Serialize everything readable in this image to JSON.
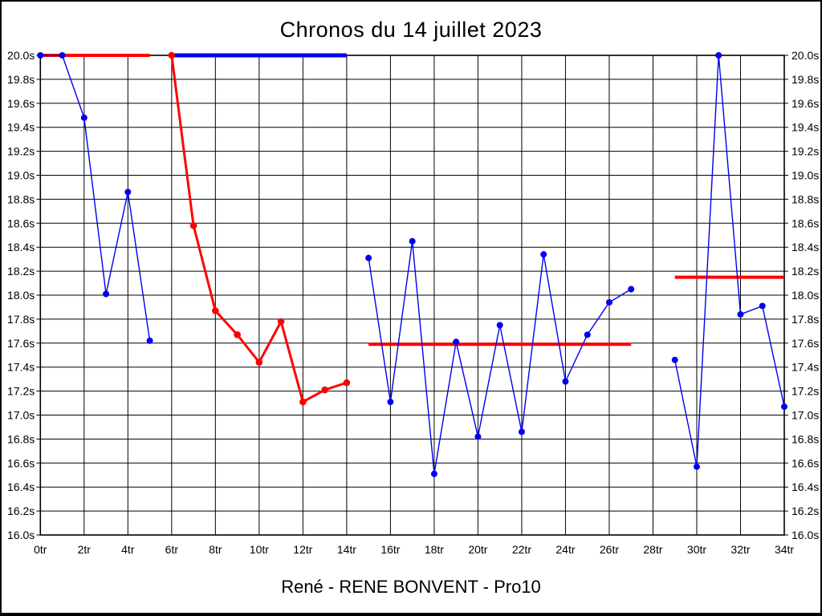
{
  "chart_data": {
    "type": "line",
    "title": "Chronos du 14 juillet 2023",
    "caption": "René - RENE BONVENT - Pro10",
    "x_unit": "tr",
    "y_unit": "s",
    "xlim": [
      0,
      34
    ],
    "ylim": [
      16.0,
      20.0
    ],
    "x_tick_step": 2,
    "y_tick_step": 0.2,
    "grid": true,
    "x_tick_labels": [
      "0tr",
      "2tr",
      "4tr",
      "6tr",
      "8tr",
      "10tr",
      "12tr",
      "14tr",
      "16tr",
      "18tr",
      "20tr",
      "22tr",
      "24tr",
      "26tr",
      "28tr",
      "30tr",
      "32tr",
      "34tr"
    ],
    "y_tick_labels": [
      "20.0s",
      "19.8s",
      "19.6s",
      "19.4s",
      "19.2s",
      "19.0s",
      "18.8s",
      "18.6s",
      "18.4s",
      "18.2s",
      "18.0s",
      "17.8s",
      "17.6s",
      "17.4s",
      "17.2s",
      "17.0s",
      "16.8s",
      "16.6s",
      "16.4s",
      "16.2s",
      "16.0s"
    ],
    "colors": {
      "blue": "#0000ee",
      "red": "#ff0000",
      "grid": "#000000"
    },
    "series": [
      {
        "name": "serie-bleue-1",
        "color": "#0000ee",
        "line_width": 1.4,
        "marker_radius": 4,
        "points": [
          [
            0,
            20.0
          ],
          [
            1,
            20.0
          ],
          [
            2,
            19.48
          ],
          [
            3,
            18.01
          ],
          [
            4,
            18.86
          ],
          [
            5,
            17.62
          ]
        ]
      },
      {
        "name": "serie-rouge",
        "color": "#ff0000",
        "line_width": 3,
        "marker_radius": 4.3,
        "points": [
          [
            6,
            20.0
          ],
          [
            7,
            18.58
          ],
          [
            8,
            17.87
          ],
          [
            9,
            17.67
          ],
          [
            10,
            17.44
          ],
          [
            11,
            17.78
          ],
          [
            12,
            17.11
          ],
          [
            13,
            17.21
          ],
          [
            14,
            17.27
          ]
        ]
      },
      {
        "name": "serie-bleue-2",
        "color": "#0000ee",
        "line_width": 1.4,
        "marker_radius": 4,
        "points": [
          [
            15,
            18.31
          ],
          [
            16,
            17.11
          ],
          [
            17,
            18.45
          ],
          [
            18,
            16.51
          ],
          [
            19,
            17.61
          ],
          [
            20,
            16.82
          ],
          [
            21,
            17.75
          ],
          [
            22,
            16.86
          ],
          [
            23,
            18.34
          ],
          [
            24,
            17.28
          ],
          [
            25,
            17.67
          ],
          [
            26,
            17.94
          ],
          [
            27,
            18.05
          ]
        ]
      },
      {
        "name": "serie-bleue-3",
        "color": "#0000ee",
        "line_width": 1.4,
        "marker_radius": 4,
        "points": [
          [
            29,
            17.46
          ],
          [
            30,
            16.57
          ],
          [
            31,
            20.0
          ],
          [
            32,
            17.84
          ],
          [
            33,
            17.91
          ],
          [
            34,
            17.07
          ]
        ]
      }
    ],
    "reference_lines": [
      {
        "name": "reference-groupe-1",
        "color": "#ff0000",
        "value": 20.0,
        "x1": 0,
        "x2": 5,
        "width": 4
      },
      {
        "name": "reference-groupe-2",
        "color": "#0000ee",
        "value": 20.0,
        "x1": 6,
        "x2": 14,
        "width": 5
      },
      {
        "name": "reference-groupe-3",
        "color": "#ff0000",
        "value": 17.59,
        "x1": 15,
        "x2": 27,
        "width": 4
      },
      {
        "name": "reference-groupe-4",
        "color": "#ff0000",
        "value": 18.15,
        "x1": 29,
        "x2": 34,
        "width": 4
      }
    ],
    "legend": "none"
  }
}
